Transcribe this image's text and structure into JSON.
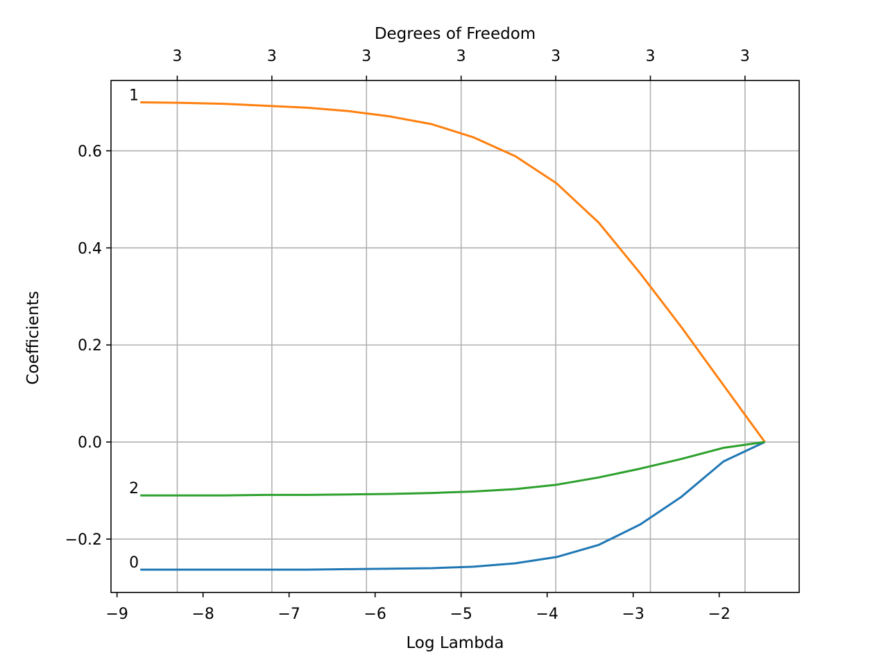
{
  "chart_data": {
    "type": "line",
    "xlabel": "Log Lambda",
    "ylabel": "Coefficients",
    "top_xlabel": "Degrees of Freedom",
    "xlim": [
      -9.07,
      -1.07
    ],
    "ylim": [
      -0.31,
      0.745
    ],
    "x_ticks": [
      -9,
      -8,
      -7,
      -6,
      -5,
      -4,
      -3,
      -2
    ],
    "x_tick_labels": [
      "−9",
      "−8",
      "−7",
      "−6",
      "−5",
      "−4",
      "−3",
      "−2"
    ],
    "y_ticks": [
      -0.2,
      0.0,
      0.2,
      0.4,
      0.6
    ],
    "y_tick_labels": [
      "−0.2",
      "0.0",
      "0.2",
      "0.4",
      "0.6"
    ],
    "top_ticks": [
      -8.3,
      -7.2,
      -6.1,
      -5.0,
      -3.9,
      -2.8,
      -1.7
    ],
    "top_tick_labels": [
      "3",
      "3",
      "3",
      "3",
      "3",
      "3",
      "3"
    ],
    "grid": true,
    "x": [
      -8.73,
      -8.25,
      -7.76,
      -7.28,
      -6.79,
      -6.31,
      -5.83,
      -5.34,
      -4.86,
      -4.37,
      -3.89,
      -3.4,
      -2.92,
      -2.44,
      -1.95,
      -1.47
    ],
    "series": [
      {
        "name": "0",
        "color": "#1f77b4",
        "values": [
          -0.263,
          -0.263,
          -0.263,
          -0.263,
          -0.263,
          -0.262,
          -0.261,
          -0.26,
          -0.257,
          -0.25,
          -0.237,
          -0.212,
          -0.17,
          -0.113,
          -0.04,
          0.0
        ]
      },
      {
        "name": "1",
        "color": "#ff7f0e",
        "values": [
          0.7,
          0.699,
          0.697,
          0.693,
          0.689,
          0.682,
          0.671,
          0.655,
          0.628,
          0.589,
          0.533,
          0.452,
          0.348,
          0.237,
          0.117,
          0.0
        ]
      },
      {
        "name": "2",
        "color": "#2ca02c",
        "values": [
          -0.11,
          -0.11,
          -0.11,
          -0.109,
          -0.109,
          -0.108,
          -0.107,
          -0.105,
          -0.102,
          -0.097,
          -0.088,
          -0.073,
          -0.055,
          -0.035,
          -0.012,
          0.0
        ]
      }
    ]
  }
}
